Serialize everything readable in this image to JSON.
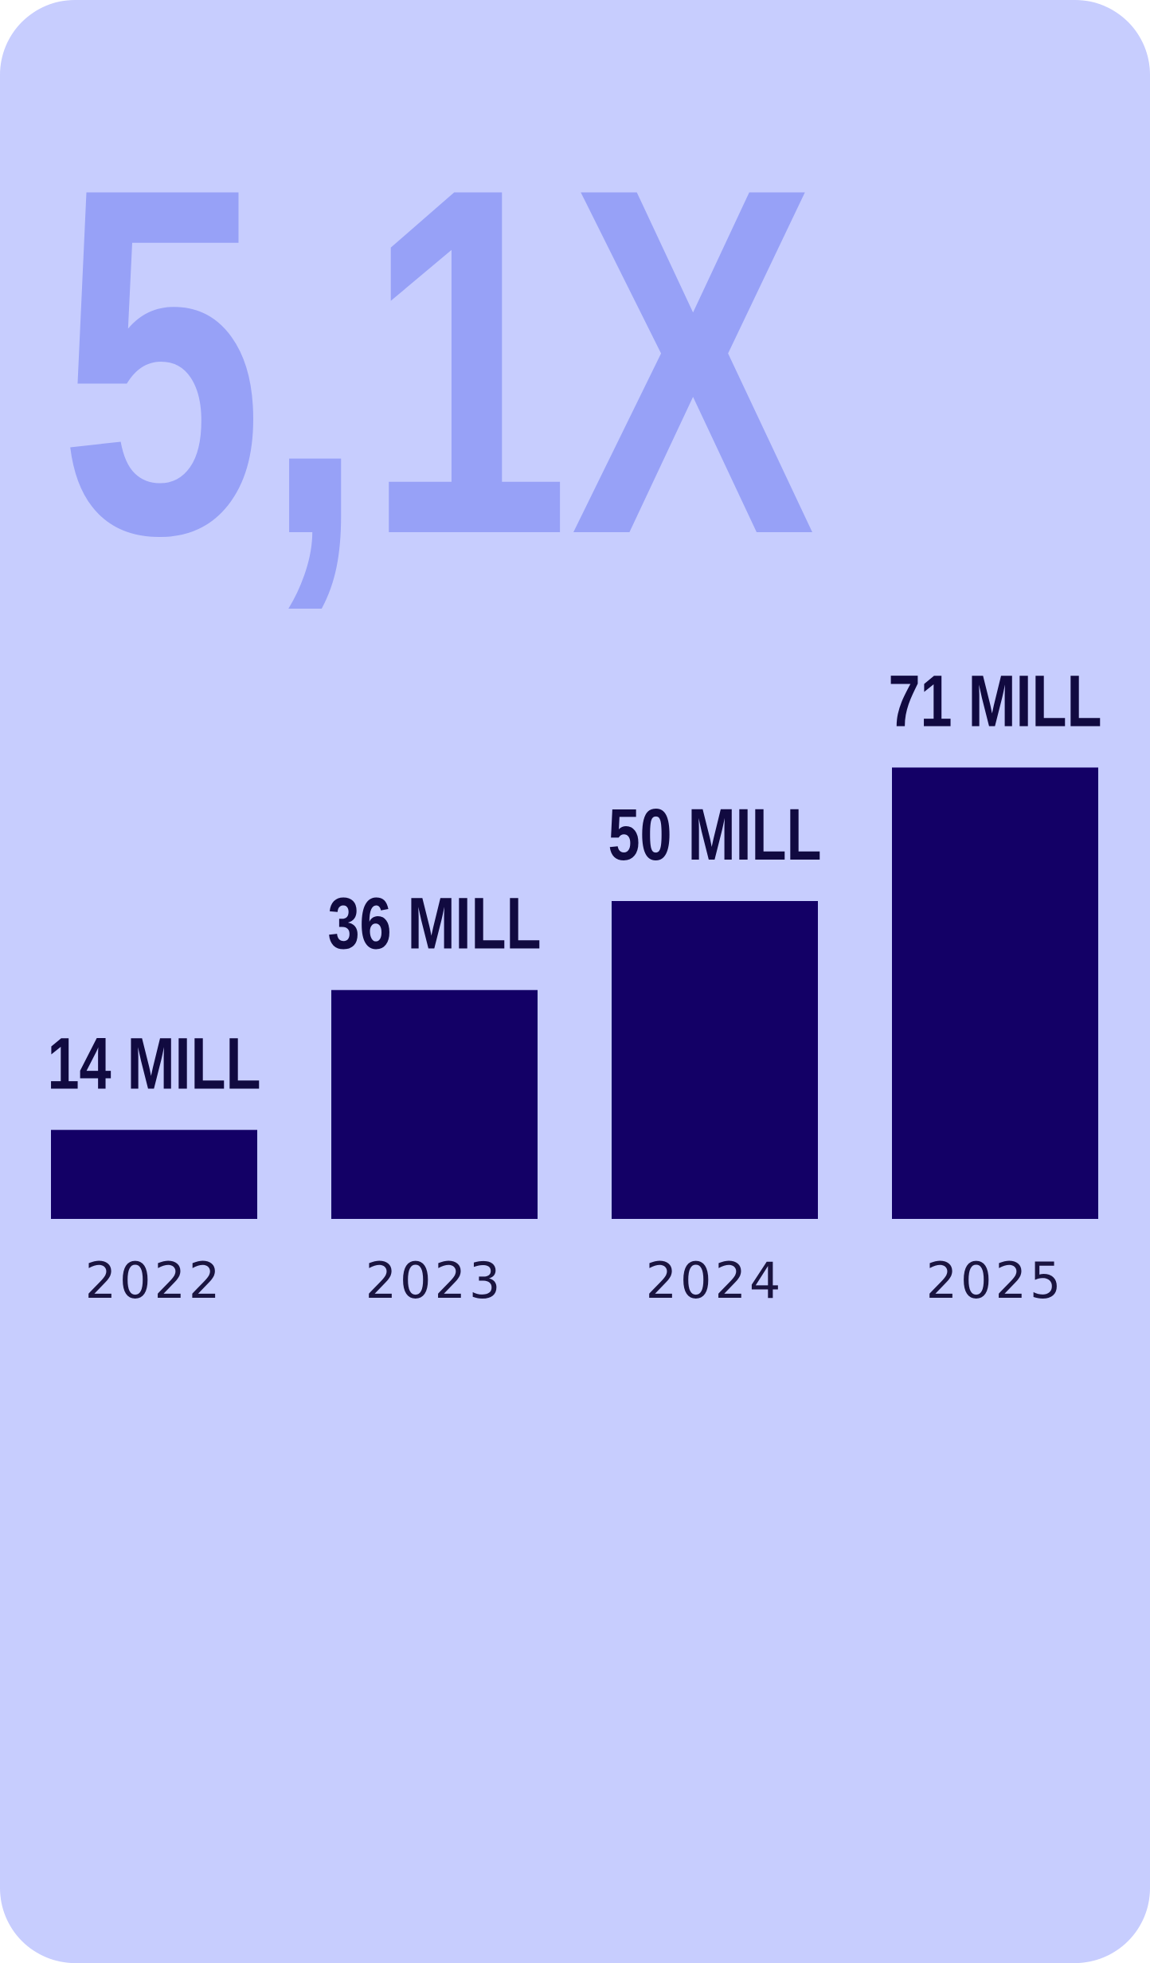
{
  "chart_data": {
    "type": "bar",
    "title": "5,1X",
    "categories": [
      "2022",
      "2023",
      "2024",
      "2025"
    ],
    "values": [
      14,
      36,
      50,
      71
    ],
    "value_labels": [
      "14 MILL",
      "36 MILL",
      "50 MILL",
      "71 MILL"
    ],
    "color": "#130066"
  }
}
